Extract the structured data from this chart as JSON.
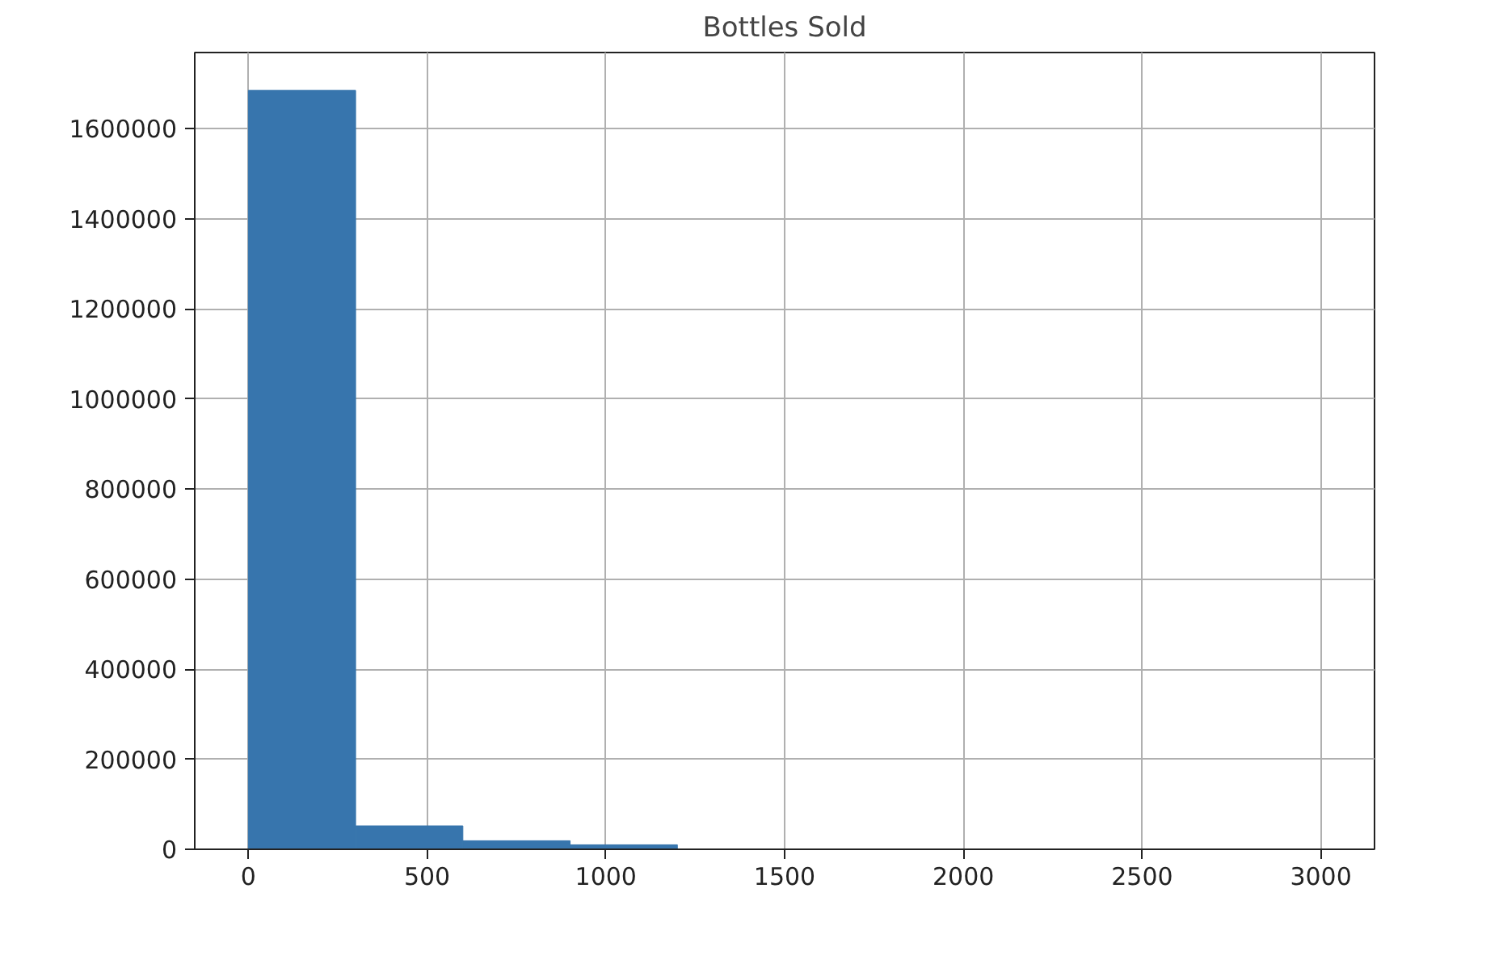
{
  "chart_data": {
    "type": "histogram",
    "title": "Bottles Sold",
    "bins": [
      0,
      300,
      600,
      900,
      1200,
      1500,
      1800,
      2100,
      2400,
      2700,
      3000
    ],
    "values": [
      1685000,
      52000,
      19000,
      10000,
      0,
      0,
      0,
      0,
      0,
      0
    ],
    "color": "#3775ad",
    "xlim": [
      -150,
      3150
    ],
    "xticks": [
      0,
      500,
      1000,
      1500,
      2000,
      2500,
      3000
    ],
    "ylim": [
      0,
      1769000
    ],
    "yticks": [
      0,
      200000,
      400000,
      600000,
      800000,
      1000000,
      1200000,
      1400000,
      1600000
    ],
    "grid": true
  }
}
